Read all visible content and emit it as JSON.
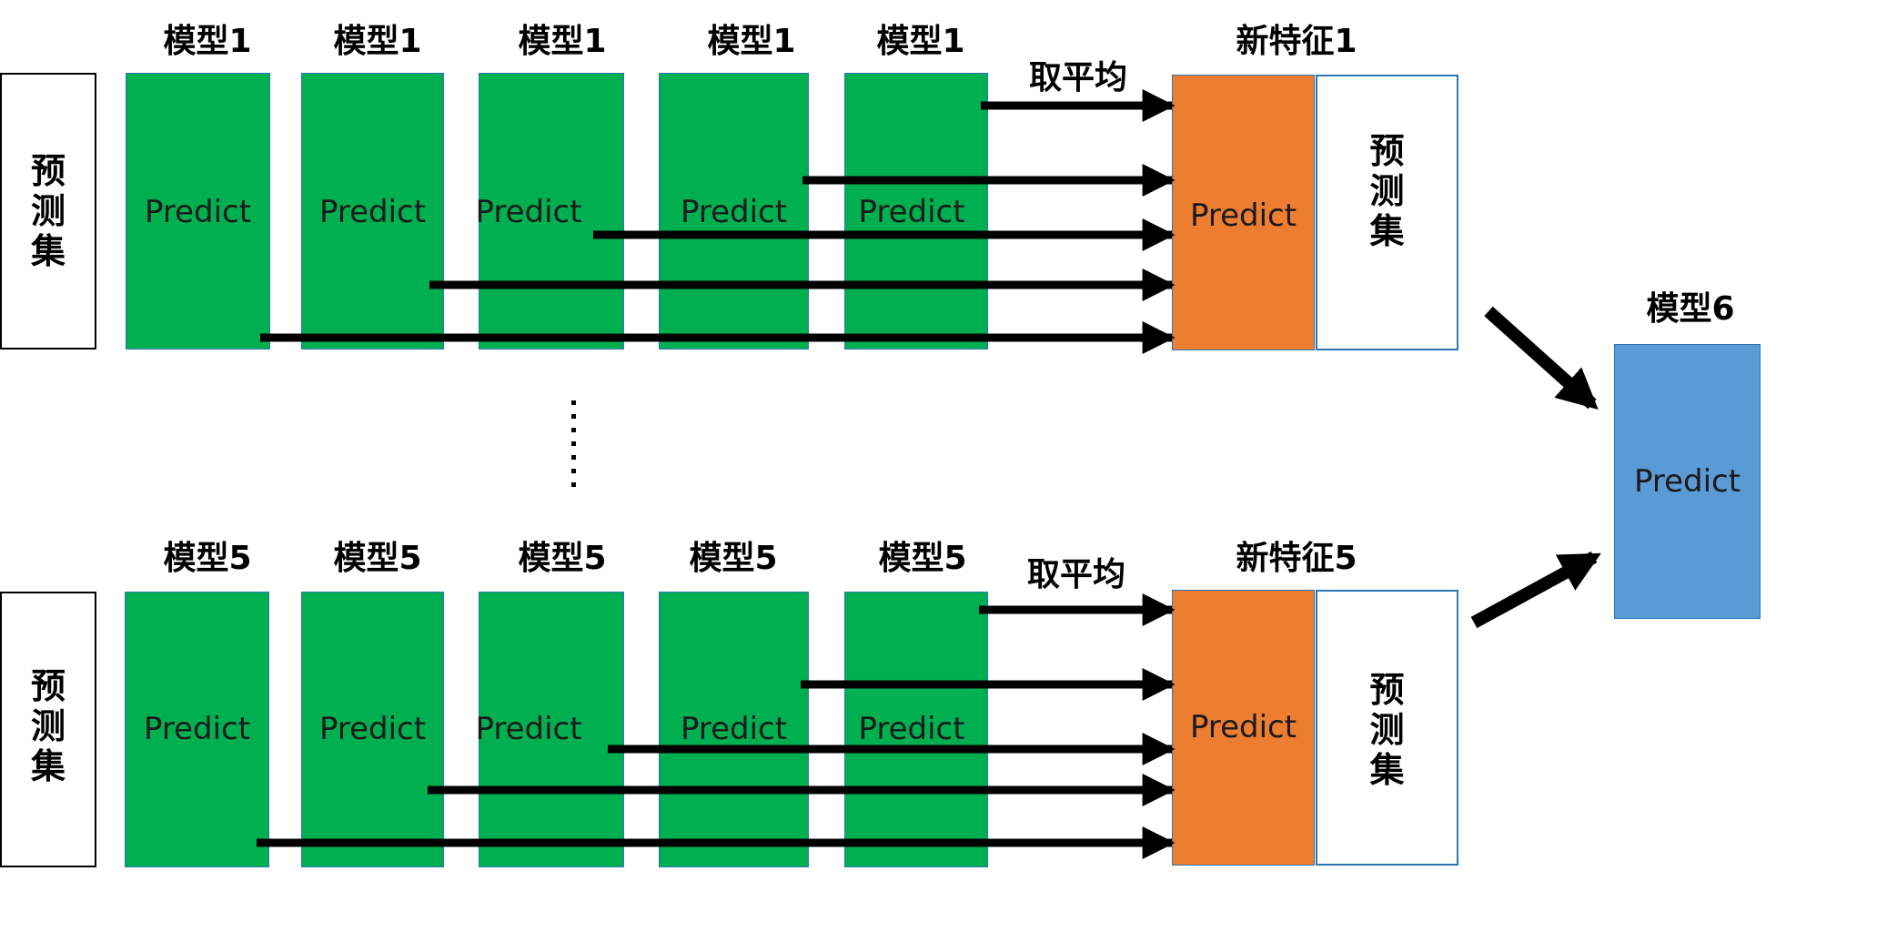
{
  "rows": [
    {
      "input_label": "预\n测\n集",
      "model_labels": [
        "模型1",
        "模型1",
        "模型1",
        "模型1",
        "模型1"
      ],
      "avg_label": "取平均",
      "feature_label": "新特征1",
      "feature_side_label": "预\n测\n集"
    },
    {
      "input_label": "预\n测\n集",
      "model_labels": [
        "模型5",
        "模型5",
        "模型5",
        "模型5",
        "模型5"
      ],
      "avg_label": "取平均",
      "feature_label": "新特征5",
      "feature_side_label": "预\n测\n集"
    }
  ],
  "predict_label": "Predict",
  "final_model_label": "模型6",
  "colors": {
    "model_box": "#00b050",
    "feature_box": "#ed7d31",
    "final_box": "#5b9bd5",
    "border": "#2e75b6",
    "arrow": "#000000"
  }
}
